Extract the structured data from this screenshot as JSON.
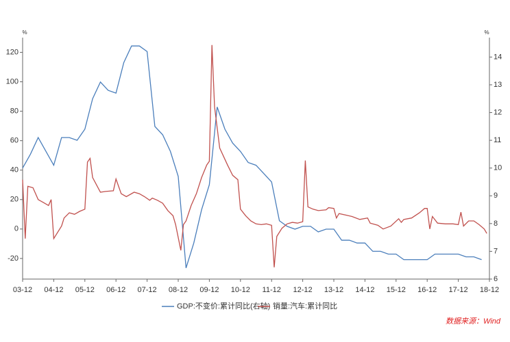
{
  "chart_data": {
    "type": "line",
    "ylabel": "%",
    "y2label": "%",
    "xlim": [
      "03-12",
      "18-12"
    ],
    "xticks": [
      "03-12",
      "04-12",
      "05-12",
      "06-12",
      "07-12",
      "08-12",
      "09-12",
      "10-12",
      "11-12",
      "12-12",
      "13-12",
      "14-12",
      "15-12",
      "16-12",
      "17-12",
      "18-12"
    ],
    "ylim": [
      -34,
      130
    ],
    "yticks": [
      -20,
      0,
      20,
      40,
      60,
      80,
      100,
      120
    ],
    "y2lim": [
      6,
      14.7
    ],
    "y2ticks": [
      6,
      7,
      8,
      9,
      10,
      11,
      12,
      13,
      14
    ],
    "legend": "bottom",
    "source": "数据来源：Wind",
    "series": [
      {
        "name": "GDP:不变价:累计同比(右轴)",
        "color": "#4a7ebb",
        "axis": "y2",
        "x": [
          "03-12",
          "04-03",
          "04-06",
          "04-09",
          "04-12",
          "05-03",
          "05-06",
          "05-09",
          "05-12",
          "06-03",
          "06-06",
          "06-09",
          "06-12",
          "07-03",
          "07-06",
          "07-09",
          "07-12",
          "08-03",
          "08-06",
          "08-09",
          "08-12",
          "09-03",
          "09-06",
          "09-09",
          "09-12",
          "10-03",
          "10-06",
          "10-09",
          "10-12",
          "11-03",
          "11-06",
          "11-09",
          "11-12",
          "12-03",
          "12-06",
          "12-09",
          "12-12",
          "13-03",
          "13-06",
          "13-09",
          "13-12",
          "14-03",
          "14-06",
          "14-09",
          "14-12",
          "15-03",
          "15-06",
          "15-09",
          "15-12",
          "16-03",
          "16-06",
          "16-09",
          "16-12",
          "17-03",
          "17-06",
          "17-09",
          "17-12",
          "18-03",
          "18-06",
          "18-09"
        ],
        "values": [
          10.0,
          10.5,
          11.1,
          10.6,
          10.1,
          11.1,
          11.1,
          11.0,
          11.4,
          12.5,
          13.1,
          12.8,
          12.7,
          13.8,
          14.4,
          14.4,
          14.2,
          11.5,
          11.2,
          10.6,
          9.7,
          6.4,
          7.3,
          8.5,
          9.4,
          12.2,
          11.4,
          10.9,
          10.6,
          10.2,
          10.1,
          9.8,
          9.5,
          8.1,
          7.9,
          7.8,
          7.9,
          7.9,
          7.7,
          7.8,
          7.8,
          7.4,
          7.4,
          7.3,
          7.3,
          7.0,
          7.0,
          6.9,
          6.9,
          6.7,
          6.7,
          6.7,
          6.7,
          6.9,
          6.9,
          6.9,
          6.9,
          6.8,
          6.8,
          6.7
        ]
      },
      {
        "name": "销量:汽车:累计同比",
        "color": "#c0504d",
        "x": [
          "03-12",
          "04-01",
          "04-02",
          "04-04",
          "04-06",
          "04-08",
          "04-10",
          "04-11",
          "04-12",
          "05-03",
          "05-04",
          "05-06",
          "05-08",
          "05-10",
          "05-12",
          "06-01",
          "06-02",
          "06-03",
          "06-06",
          "06-08",
          "06-11",
          "06-12",
          "07-02",
          "07-04",
          "07-07",
          "07-09",
          "07-11",
          "08-01",
          "08-02",
          "08-04",
          "08-06",
          "08-08",
          "08-10",
          "08-11",
          "09-01",
          "09-02",
          "09-03",
          "09-05",
          "09-07",
          "09-09",
          "09-11",
          "09-12",
          "10-01",
          "10-02",
          "10-04",
          "10-07",
          "10-09",
          "10-11",
          "10-12",
          "11-02",
          "11-04",
          "11-06",
          "11-08",
          "11-10",
          "11-12",
          "12-01",
          "12-02",
          "12-04",
          "12-06",
          "12-08",
          "12-10",
          "12-12",
          "13-01",
          "13-02",
          "13-04",
          "13-06",
          "13-09",
          "13-10",
          "13-12",
          "14-01",
          "14-02",
          "14-05",
          "14-07",
          "14-10",
          "15-01",
          "15-02",
          "15-05",
          "15-07",
          "15-10",
          "16-01",
          "16-02",
          "16-03",
          "16-06",
          "16-09",
          "16-11",
          "16-12",
          "17-01",
          "17-02",
          "17-04",
          "17-07",
          "17-10",
          "17-12",
          "18-01",
          "18-02",
          "18-04",
          "18-06",
          "18-08",
          "18-10",
          "18-11"
        ],
        "values": [
          33.5,
          -6.5,
          29,
          28,
          20,
          18,
          16,
          20,
          -6.5,
          2,
          7.5,
          11,
          10,
          12,
          13.5,
          45.5,
          48,
          35,
          25,
          25.5,
          26,
          34,
          24,
          22,
          25,
          24,
          22,
          19.5,
          21,
          19.5,
          17.5,
          12.5,
          9,
          3,
          -14.5,
          3,
          5.5,
          16,
          24,
          35,
          43.5,
          46,
          125,
          83,
          55,
          43.5,
          36.5,
          33.5,
          13.5,
          9,
          5.5,
          3.5,
          3,
          3.5,
          2.5,
          -26,
          -5,
          0.5,
          3.5,
          4.5,
          4,
          5,
          46.5,
          15,
          13.5,
          12.5,
          13,
          14.5,
          14,
          7.5,
          10.5,
          9.3,
          8.5,
          6.5,
          7.5,
          4,
          2.5,
          0,
          2,
          7,
          4.5,
          6.5,
          7.5,
          11,
          14,
          14,
          0,
          8.5,
          4,
          3.5,
          3.5,
          3,
          11.5,
          2,
          5.5,
          5.5,
          3,
          0,
          -3
        ]
      }
    ]
  }
}
